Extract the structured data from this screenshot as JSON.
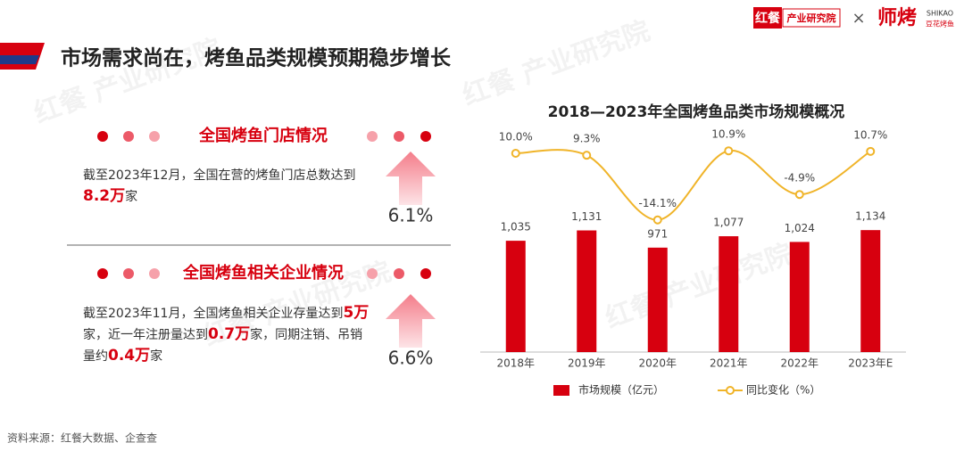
{
  "header": {
    "title": "市场需求尚在，烤鱼品类规模预期稳步增长",
    "logo_left": "红餐",
    "logo_left_sub": "产业研究院",
    "cross": "×",
    "logo_right": "师烤",
    "logo_right_en": "SHIKAO",
    "logo_right_sub": "豆花烤鱼"
  },
  "watermark": "红餐 产业研究院",
  "panels": [
    {
      "title": "全国烤鱼门店情况",
      "text": [
        {
          "text": "截至2023年12月，全国在营的烤鱼门店总数达到",
          "emphasis": false
        },
        {
          "text": "8.2万",
          "emphasis": true
        },
        {
          "text": "家",
          "emphasis": false
        }
      ],
      "growth": "6.1%"
    },
    {
      "title": "全国烤鱼相关企业情况",
      "text": [
        {
          "text": "截至2023年11月，全国烤鱼相关企业存量达到",
          "emphasis": false
        },
        {
          "text": "5万",
          "emphasis": true
        },
        {
          "text": "家，近一年注册量达到",
          "emphasis": false
        },
        {
          "text": "0.7万",
          "emphasis": true
        },
        {
          "text": "家，同期注销、吊销量约",
          "emphasis": false
        },
        {
          "text": "0.4万",
          "emphasis": true
        },
        {
          "text": "家",
          "emphasis": false
        }
      ],
      "growth": "6.6%"
    }
  ],
  "source": "资料来源：红餐大数据、企查查",
  "chart_data": {
    "type": "combo",
    "title": "2018—2023年全国烤鱼品类市场规模概况",
    "categories": [
      "2018年",
      "2019年",
      "2020年",
      "2021年",
      "2022年",
      "2023年E"
    ],
    "series": [
      {
        "name": "市场规模（亿元）",
        "type": "bar",
        "color": "#d7000f",
        "values": [
          1035,
          1131,
          971,
          1077,
          1024,
          1134
        ],
        "value_labels": [
          "1,035",
          "1,131",
          "971",
          "1,077",
          "1,024",
          "1,134"
        ]
      },
      {
        "name": "同比变化（%）",
        "type": "line",
        "axis": "y2",
        "color": "#f0b429",
        "values": [
          10.0,
          9.3,
          -14.1,
          10.9,
          -4.9,
          10.7
        ],
        "value_labels": [
          "10.0%",
          "9.3%",
          "-14.1%",
          "10.9%",
          "-4.9%",
          "10.7%"
        ]
      }
    ],
    "ylim": [
      0,
      1500
    ],
    "y2lim": [
      -40,
      20
    ],
    "legend": "bottom"
  }
}
